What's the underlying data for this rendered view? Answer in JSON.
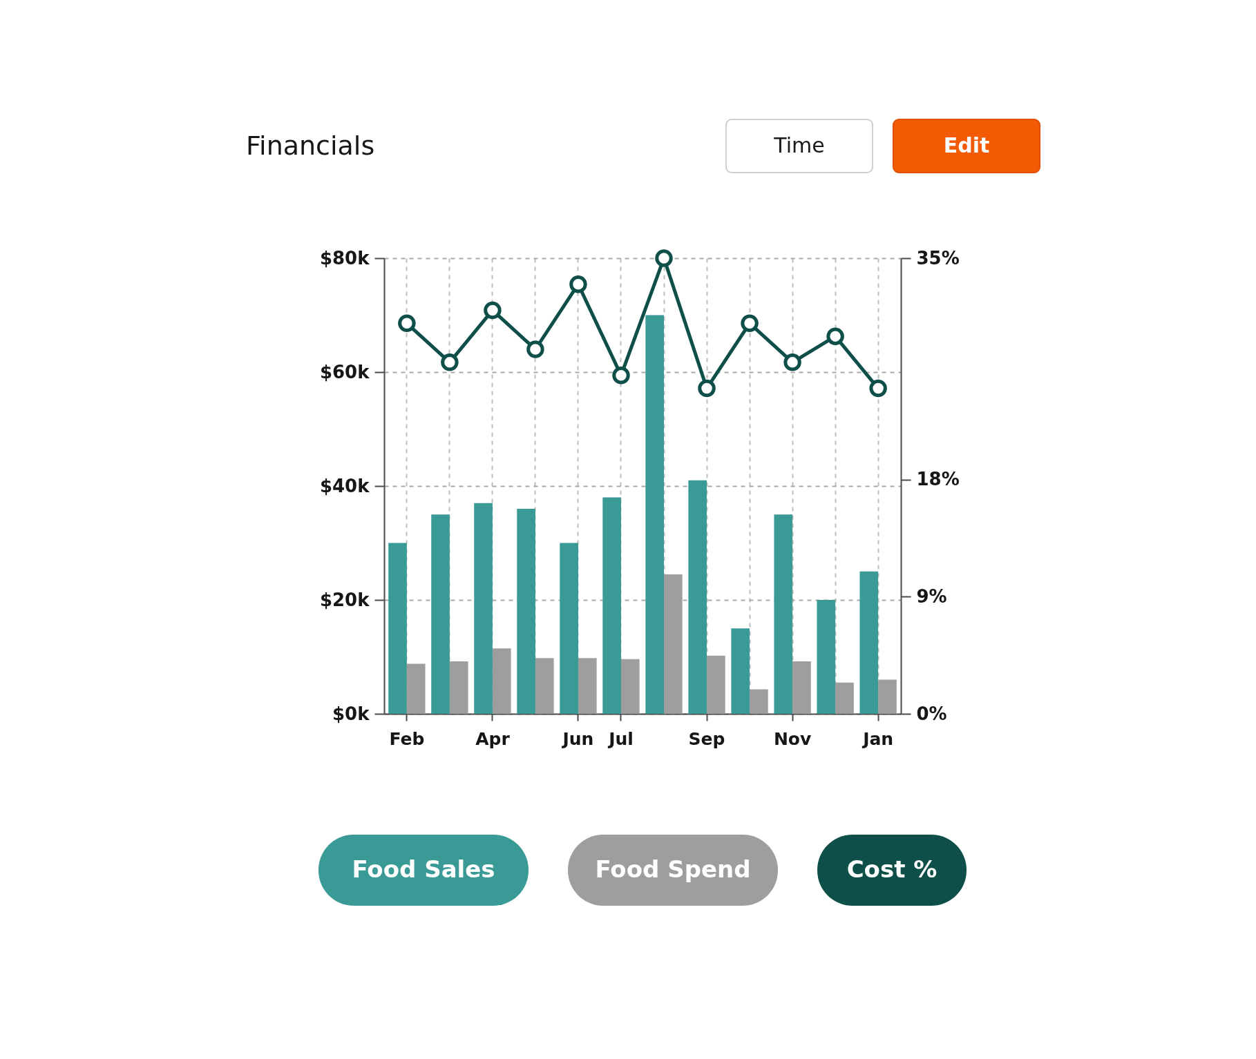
{
  "chart_data": {
    "type": "bar",
    "title": "Financials",
    "annotations": [
      "Time",
      "Edit"
    ],
    "categories": [
      "Feb",
      null,
      "Apr",
      null,
      "Jun",
      "Jul",
      null,
      "Sep",
      null,
      "Nov",
      null,
      "Jan"
    ],
    "series": [
      {
        "name": "Food Sales",
        "color": "#3a9a96",
        "values": [
          30000,
          35000,
          37000,
          36000,
          30000,
          38000,
          70000,
          41000,
          15000,
          35000,
          20000,
          25000
        ]
      },
      {
        "name": "Food Spend",
        "color": "#9e9e9e",
        "values": [
          8800,
          9200,
          11500,
          9800,
          9800,
          9600,
          24500,
          10200,
          4300,
          9200,
          5500,
          6000
        ]
      },
      {
        "name": "Cost %",
        "type": "line",
        "axis": "y2",
        "color": "#0f4f4a",
        "values": [
          30,
          27,
          31,
          28,
          33,
          26,
          35,
          25,
          30,
          27,
          29,
          25
        ]
      }
    ],
    "ylim": [
      0,
      80000
    ],
    "yticks": [
      {
        "value": 0,
        "label": "$0k"
      },
      {
        "value": 20000,
        "label": "$20k"
      },
      {
        "value": 40000,
        "label": "$40k"
      },
      {
        "value": 60000,
        "label": "$60k"
      },
      {
        "value": 80000,
        "label": "$80k"
      }
    ],
    "y2lim": [
      0,
      35
    ],
    "y2ticks": [
      {
        "value": 0,
        "label": "0%"
      },
      {
        "value": 9,
        "label": "9%"
      },
      {
        "value": 18,
        "label": "18%"
      },
      {
        "value": 35,
        "label": "35%"
      }
    ],
    "grid": true,
    "legend": "bottom",
    "marker": "circle",
    "line_style": "solid"
  }
}
